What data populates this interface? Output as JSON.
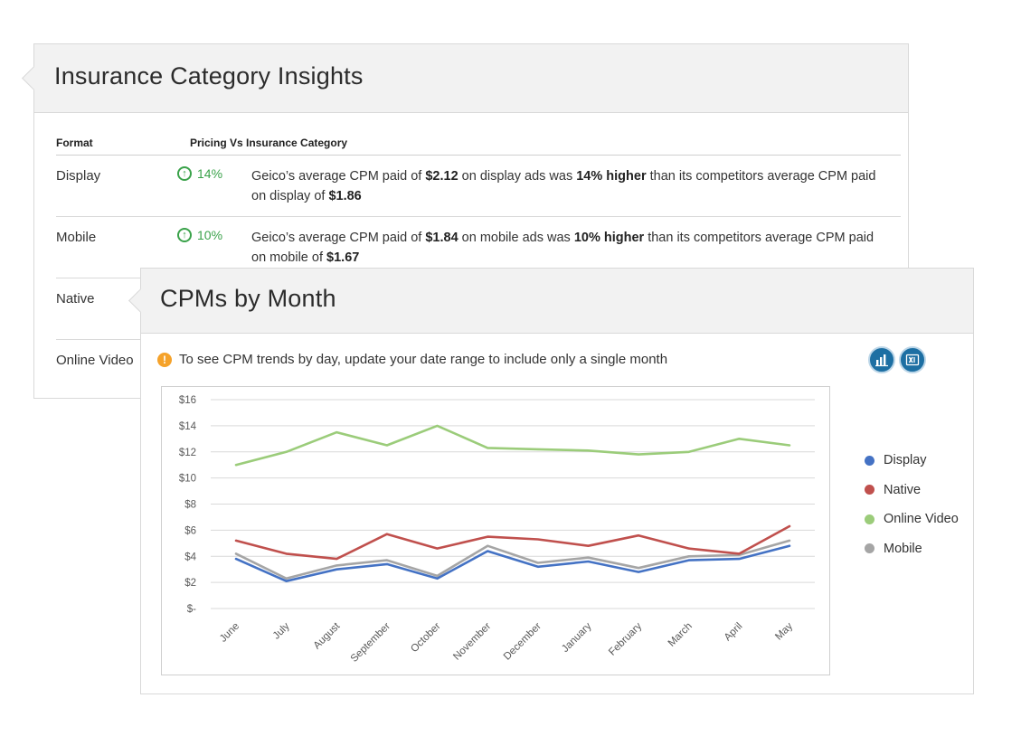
{
  "insights": {
    "title": "Insurance Category Insights",
    "col_format": "Format",
    "col_pricing": "Pricing Vs Insurance Category",
    "rows": [
      {
        "format": "Display",
        "pct": "14%",
        "desc_html": "Geico’s average CPM paid of <b>$2.12</b> on display ads was <b>14% higher</b> than its competitors average CPM paid on display of <b>$1.86</b>"
      },
      {
        "format": "Mobile",
        "pct": "10%",
        "desc_html": "Geico’s average CPM paid of <b>$1.84</b> on mobile ads was <b>10% higher</b> than its competitors average CPM paid on mobile of <b>$1.67</b>"
      },
      {
        "format": "Native"
      },
      {
        "format": "Online Video"
      }
    ]
  },
  "cpm": {
    "title": "CPMs by Month",
    "notice": "To see CPM trends by day, update your date range to include only a single month",
    "icons": [
      "chart-export-icon",
      "excel-export-icon"
    ]
  },
  "chart_data": {
    "type": "line",
    "categories": [
      "June",
      "July",
      "August",
      "September",
      "October",
      "November",
      "December",
      "January",
      "February",
      "March",
      "April",
      "May"
    ],
    "y_tick_labels": [
      "$-",
      "$2",
      "$4",
      "$6",
      "$8",
      "$10",
      "$12",
      "$14",
      "$16"
    ],
    "ylim": [
      0,
      16
    ],
    "grid": true,
    "legend_position": "right",
    "series": [
      {
        "name": "Display",
        "color": "#4472c4",
        "values": [
          3.8,
          2.1,
          3.0,
          3.4,
          2.3,
          4.4,
          3.2,
          3.6,
          2.8,
          3.7,
          3.8,
          4.8
        ]
      },
      {
        "name": "Native",
        "color": "#c0504d",
        "values": [
          5.2,
          4.2,
          3.8,
          5.7,
          4.6,
          5.5,
          5.3,
          4.8,
          5.6,
          4.6,
          4.2,
          6.3
        ]
      },
      {
        "name": "Online Video",
        "color": "#9bcc7a",
        "values": [
          11.0,
          12.0,
          13.5,
          12.5,
          14.0,
          12.3,
          12.2,
          12.1,
          11.8,
          12.0,
          13.0,
          12.5
        ]
      },
      {
        "name": "Mobile",
        "color": "#a5a5a5",
        "values": [
          4.2,
          2.3,
          3.3,
          3.7,
          2.5,
          4.8,
          3.5,
          3.9,
          3.1,
          4.0,
          4.1,
          5.2
        ]
      }
    ]
  }
}
